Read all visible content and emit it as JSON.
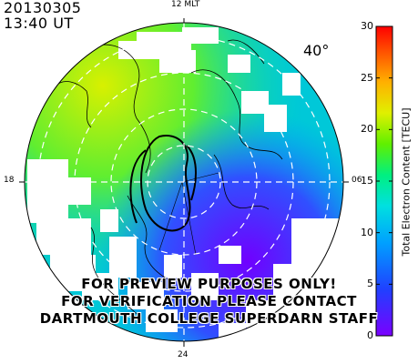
{
  "header": {
    "date": "20130305",
    "time": "13:40 UT"
  },
  "map": {
    "projection": "polar magnetic",
    "lat_label": "40°",
    "mlt_labels": {
      "top": "12 MLT",
      "left": "18",
      "right": "06",
      "bottom": "24"
    },
    "colors": {
      "low": "#7a00ff",
      "mid": "#00e0c0",
      "high": "#ff0000"
    }
  },
  "colorbar": {
    "label": "Total Electron Content [TECU]",
    "ticks": [
      "0",
      "5",
      "10",
      "15",
      "20",
      "25",
      "30"
    ],
    "min": 0,
    "max": 30
  },
  "watermark": {
    "line1": "FOR PREVIEW PURPOSES ONLY!",
    "line2": "FOR VERIFICATION PLEASE CONTACT",
    "line3": "DARTMOUTH COLLEGE SUPERDARN STAFF"
  }
}
